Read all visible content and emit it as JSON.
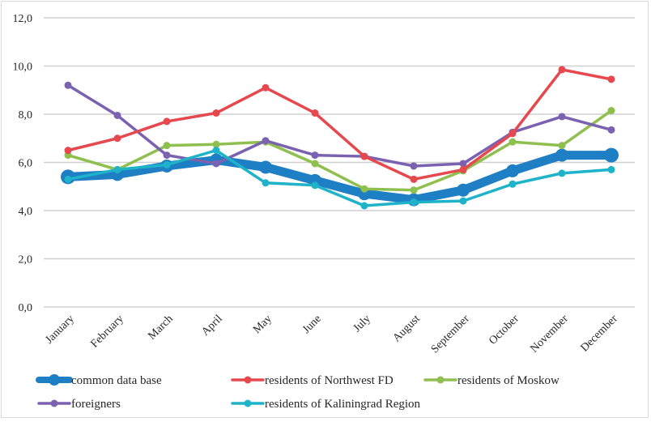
{
  "chart_data": {
    "type": "line",
    "title": "",
    "xlabel": "",
    "ylabel": "",
    "ylim": [
      0,
      12
    ],
    "y_ticks": [
      "0,0",
      "2,0",
      "4,0",
      "6,0",
      "8,0",
      "10,0",
      "12,0"
    ],
    "y_tick_values": [
      0,
      2,
      4,
      6,
      8,
      10,
      12
    ],
    "grid": true,
    "legend_position": "bottom",
    "categories": [
      "January",
      "February",
      "March",
      "April",
      "May",
      "June",
      "July",
      "August",
      "September",
      "October",
      "November",
      "December"
    ],
    "series": [
      {
        "name": "common data base",
        "color": "#1f7fc4",
        "emphasis": "thick",
        "values": [
          5.4,
          5.5,
          5.85,
          6.1,
          5.8,
          5.25,
          4.7,
          4.45,
          4.85,
          5.65,
          6.3,
          6.3
        ]
      },
      {
        "name": "residents of Northwest FD",
        "color": "#e5484d",
        "emphasis": "normal",
        "values": [
          6.5,
          7.0,
          7.7,
          8.05,
          9.1,
          8.05,
          6.25,
          5.3,
          5.7,
          7.2,
          9.85,
          9.45
        ]
      },
      {
        "name": "residents of Moskow",
        "color": "#8fbf4f",
        "emphasis": "normal",
        "values": [
          6.3,
          5.7,
          6.7,
          6.75,
          6.85,
          5.95,
          4.9,
          4.85,
          5.65,
          6.85,
          6.7,
          8.15
        ]
      },
      {
        "name": "foreigners",
        "color": "#7b62b0",
        "emphasis": "normal",
        "values": [
          9.2,
          7.95,
          6.3,
          5.95,
          6.9,
          6.3,
          6.25,
          5.85,
          5.95,
          7.25,
          7.9,
          7.35
        ]
      },
      {
        "name": "residents of Kaliningrad Region",
        "color": "#1eb3c9",
        "emphasis": "normal",
        "values": [
          5.3,
          5.7,
          5.9,
          6.5,
          5.15,
          5.05,
          4.2,
          4.35,
          4.4,
          5.1,
          5.55,
          5.7
        ]
      }
    ]
  }
}
